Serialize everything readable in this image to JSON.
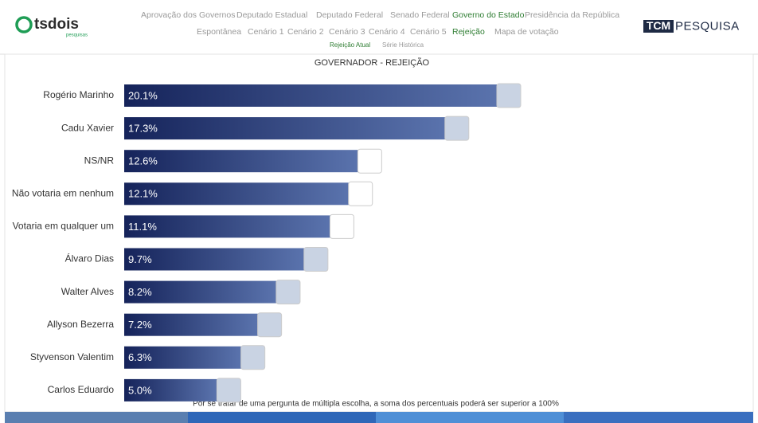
{
  "header": {
    "logo": "tsdois",
    "logo_sub": "pesquisas",
    "partner_logo_a": "TCM",
    "partner_logo_b": "PESQUISA",
    "nav_main": [
      "Aprovação dos Governos",
      "Deputado Estadual",
      "Deputado Federal",
      "Senado Federal",
      "Governo do Estado",
      "Presidência da República"
    ],
    "nav_sub": [
      "Espontânea",
      "Cenário 1",
      "Cenário 2",
      "Cenário 3",
      "Cenário 4",
      "Cenário 5",
      "Rejeição",
      "Mapa de votação"
    ],
    "nav_tabs": [
      "Rejeição Atual",
      "Série Histórica"
    ]
  },
  "chart_data": {
    "type": "bar",
    "orientation": "horizontal",
    "title": "GOVERNADOR - REJEIÇÃO",
    "categories": [
      "Rogério Marinho",
      "Cadu Xavier",
      "NS/NR",
      "Não votaria em nenhum",
      "Votaria em qualquer um",
      "Álvaro Dias",
      "Walter Alves",
      "Allyson Bezerra",
      "Styvenson Valentim",
      "Carlos Eduardo"
    ],
    "values": [
      20.1,
      17.3,
      12.6,
      12.1,
      11.1,
      9.7,
      8.2,
      7.2,
      6.3,
      5.0
    ],
    "value_labels": [
      "20.1%",
      "17.3%",
      "12.6%",
      "12.1%",
      "11.1%",
      "9.7%",
      "8.2%",
      "7.2%",
      "6.3%",
      "5.0%"
    ],
    "color": "#1b2a63",
    "footnote": "Por se tratar de uma pergunta de múltipla escolha, a soma dos percentuais poderá ser superior a 100%"
  }
}
